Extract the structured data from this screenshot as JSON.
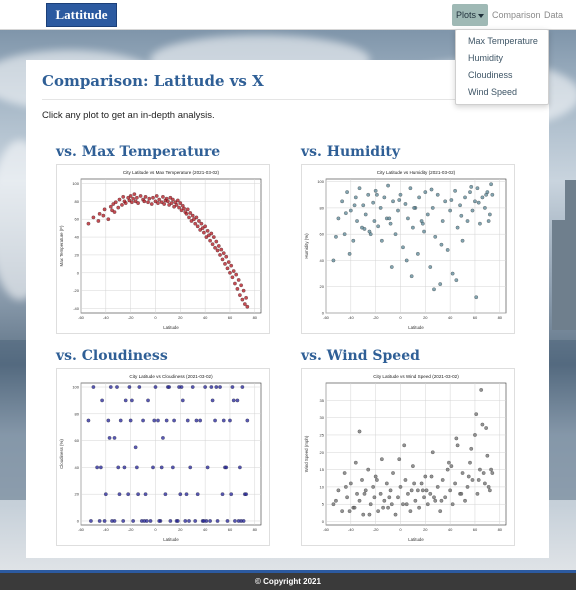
{
  "brand": "Lattitude",
  "nav": {
    "plots_label": "Plots",
    "comparison_label": "Comparison",
    "data_label": "Data",
    "dropdown": [
      "Max Temperature",
      "Humidity",
      "Cloudiness",
      "Wind Speed"
    ]
  },
  "page": {
    "title": "Comparison: Latitude vs X",
    "intro": "Click any plot to get an in-depth analysis."
  },
  "plots": {
    "temp": {
      "heading": "vs. Max Temperature",
      "title": "City Latitude vs Max Temperature (2021-03-02)",
      "xlabel": "Latitude",
      "ylabel": "Max Temperature (F)"
    },
    "humidity": {
      "heading": "vs. Humidity",
      "title": "City Latitude vs Humidity (2021-03-02)",
      "xlabel": "Latitude",
      "ylabel": "Humidity (%)"
    },
    "cloud": {
      "heading": "vs. Cloudiness",
      "title": "City Latitude vs Cloudiness (2021-03-02)",
      "xlabel": "Latitude",
      "ylabel": "Cloudiness (%)"
    },
    "wind": {
      "heading": "vs. Wind Speed",
      "title": "City Latitude vs Wind Speed (2021-03-02)",
      "xlabel": "Latitude",
      "ylabel": "Wind Speed (mph)"
    }
  },
  "chart_data": [
    {
      "type": "scatter",
      "title": "City Latitude vs Max Temperature (2021-03-02)",
      "xlabel": "Latitude",
      "ylabel": "Max Temperature (F)",
      "xlim": [
        -60,
        85
      ],
      "ylim": [
        -45,
        105
      ],
      "xticks": [
        -60,
        -40,
        -20,
        0,
        20,
        40,
        60,
        80
      ],
      "yticks": [
        -40,
        -20,
        0,
        20,
        40,
        60,
        80,
        100
      ],
      "color": "#b0121b",
      "grid": true,
      "x": [
        -54,
        -50,
        -46,
        -45,
        -42,
        -41,
        -38,
        -36,
        -35,
        -34,
        -33,
        -32,
        -30,
        -29,
        -27,
        -26,
        -25,
        -24,
        -22,
        -21,
        -20,
        -19,
        -18,
        -17,
        -16,
        -15,
        -14,
        -12,
        -10,
        -9,
        -8,
        -6,
        -5,
        -3,
        -2,
        0,
        1,
        2,
        3,
        5,
        6,
        7,
        8,
        9,
        10,
        11,
        12,
        13,
        14,
        15,
        16,
        17,
        18,
        19,
        20,
        21,
        22,
        23,
        24,
        25,
        26,
        27,
        28,
        29,
        30,
        31,
        32,
        33,
        34,
        35,
        36,
        37,
        38,
        39,
        40,
        41,
        42,
        43,
        44,
        45,
        46,
        47,
        48,
        49,
        50,
        51,
        52,
        53,
        54,
        55,
        56,
        57,
        58,
        59,
        60,
        61,
        62,
        63,
        64,
        65,
        66,
        67,
        68,
        69,
        70,
        71,
        72,
        73,
        74
      ],
      "y": [
        55,
        62,
        58,
        66,
        64,
        71,
        60,
        74,
        70,
        77,
        68,
        79,
        73,
        82,
        76,
        85,
        80,
        78,
        84,
        81,
        86,
        79,
        83,
        88,
        80,
        84,
        78,
        86,
        82,
        80,
        85,
        79,
        83,
        77,
        84,
        80,
        86,
        78,
        82,
        79,
        85,
        77,
        81,
        83,
        80,
        76,
        84,
        78,
        82,
        74,
        79,
        76,
        81,
        73,
        78,
        70,
        75,
        72,
        68,
        66,
        71,
        62,
        67,
        58,
        64,
        60,
        55,
        62,
        52,
        58,
        48,
        55,
        50,
        45,
        52,
        40,
        47,
        42,
        36,
        44,
        32,
        40,
        28,
        35,
        25,
        30,
        20,
        26,
        15,
        22,
        10,
        18,
        5,
        12,
        0,
        8,
        -5,
        2,
        -12,
        -2,
        -18,
        -8,
        -25,
        -14,
        -30,
        -20,
        -35,
        -28,
        -38
      ]
    },
    {
      "type": "scatter",
      "title": "City Latitude vs Humidity (2021-03-02)",
      "xlabel": "Latitude",
      "ylabel": "Humidity (%)",
      "xlim": [
        -60,
        85
      ],
      "ylim": [
        0,
        102
      ],
      "xticks": [
        -60,
        -40,
        -20,
        0,
        20,
        40,
        60,
        80
      ],
      "yticks": [
        0,
        20,
        40,
        60,
        80,
        100
      ],
      "color": "#5a8596",
      "grid": true,
      "x": [
        -54,
        -50,
        -47,
        -45,
        -43,
        -40,
        -38,
        -36,
        -35,
        -33,
        -31,
        -30,
        -28,
        -26,
        -24,
        -22,
        -21,
        -20,
        -18,
        -16,
        -15,
        -13,
        -11,
        -10,
        -8,
        -6,
        -4,
        -2,
        0,
        2,
        4,
        6,
        8,
        10,
        12,
        14,
        15,
        17,
        19,
        20,
        22,
        24,
        26,
        28,
        30,
        32,
        34,
        36,
        38,
        40,
        42,
        44,
        46,
        48,
        50,
        52,
        54,
        56,
        58,
        60,
        62,
        64,
        66,
        68,
        70,
        72,
        74,
        -52,
        -44,
        -37,
        -29,
        -19,
        -9,
        -1,
        5,
        11,
        18,
        25,
        33,
        41,
        49,
        57,
        63,
        69,
        73,
        -41,
        -25,
        -7,
        9,
        27,
        45,
        61,
        71
      ],
      "y": [
        40,
        72,
        85,
        60,
        92,
        78,
        55,
        88,
        70,
        95,
        65,
        82,
        75,
        90,
        60,
        84,
        70,
        93,
        66,
        80,
        55,
        88,
        72,
        97,
        68,
        85,
        60,
        78,
        90,
        50,
        83,
        72,
        95,
        65,
        80,
        45,
        88,
        70,
        62,
        92,
        75,
        35,
        80,
        58,
        90,
        22,
        70,
        85,
        48,
        78,
        30,
        93,
        65,
        82,
        55,
        88,
        70,
        92,
        78,
        85,
        95,
        68,
        88,
        80,
        92,
        75,
        90,
        58,
        76,
        82,
        64,
        90,
        72,
        86,
        40,
        80,
        68,
        94,
        52,
        86,
        74,
        96,
        84,
        90,
        98,
        45,
        62,
        35,
        28,
        18,
        25,
        12,
        70
      ]
    },
    {
      "type": "scatter",
      "title": "City Latitude vs Cloudiness (2021-03-02)",
      "xlabel": "Latitude",
      "ylabel": "Cloudiness (%)",
      "xlim": [
        -60,
        85
      ],
      "ylim": [
        -3,
        103
      ],
      "xticks": [
        -60,
        -40,
        -20,
        0,
        20,
        40,
        60,
        80
      ],
      "yticks": [
        0,
        20,
        40,
        60,
        80,
        100
      ],
      "color": "#22229a",
      "grid": true,
      "x": [
        -54,
        -50,
        -47,
        -45,
        -43,
        -40,
        -38,
        -36,
        -35,
        -33,
        -31,
        -30,
        -28,
        -26,
        -24,
        -22,
        -21,
        -20,
        -18,
        -16,
        -15,
        -13,
        -11,
        -10,
        -8,
        -6,
        -4,
        -2,
        0,
        2,
        4,
        6,
        8,
        10,
        12,
        14,
        15,
        17,
        19,
        20,
        22,
        24,
        26,
        28,
        30,
        32,
        34,
        36,
        38,
        40,
        42,
        44,
        46,
        48,
        50,
        52,
        54,
        56,
        58,
        60,
        62,
        64,
        66,
        68,
        70,
        72,
        74,
        -52,
        -44,
        -37,
        -29,
        -19,
        -9,
        -1,
        5,
        11,
        18,
        25,
        33,
        41,
        49,
        57,
        63,
        69,
        73,
        -41,
        -25,
        -7,
        9,
        27,
        45,
        61,
        71,
        -33,
        -14,
        3,
        21,
        39,
        55,
        67
      ],
      "y": [
        75,
        100,
        40,
        0,
        90,
        20,
        75,
        100,
        0,
        62,
        100,
        40,
        75,
        0,
        90,
        20,
        100,
        75,
        0,
        55,
        40,
        100,
        0,
        75,
        20,
        90,
        0,
        40,
        100,
        75,
        0,
        62,
        20,
        100,
        0,
        40,
        75,
        0,
        100,
        20,
        90,
        0,
        75,
        40,
        100,
        0,
        20,
        75,
        0,
        100,
        40,
        0,
        90,
        75,
        0,
        100,
        20,
        40,
        0,
        75,
        100,
        0,
        90,
        40,
        100,
        20,
        75,
        0,
        40,
        62,
        20,
        90,
        0,
        75,
        40,
        100,
        0,
        20,
        75,
        0,
        100,
        40,
        90,
        0,
        20,
        0,
        40,
        0,
        75,
        0,
        100,
        20,
        0,
        0,
        20,
        0,
        100,
        0,
        75,
        0
      ]
    },
    {
      "type": "scatter",
      "title": "City Latitude vs Wind Speed (2021-03-02)",
      "xlabel": "Latitude",
      "ylabel": "Wind Speed (mph)",
      "xlim": [
        -60,
        85
      ],
      "ylim": [
        -1,
        40
      ],
      "xticks": [
        -60,
        -40,
        -20,
        0,
        20,
        40,
        60,
        80
      ],
      "yticks": [
        0,
        5,
        10,
        15,
        20,
        25,
        30,
        35
      ],
      "color": "#6e6e6e",
      "grid": true,
      "x": [
        -54,
        -50,
        -47,
        -45,
        -43,
        -40,
        -38,
        -36,
        -35,
        -33,
        -31,
        -30,
        -28,
        -26,
        -24,
        -22,
        -21,
        -20,
        -18,
        -16,
        -15,
        -13,
        -11,
        -10,
        -8,
        -6,
        -4,
        -2,
        0,
        2,
        4,
        6,
        8,
        10,
        12,
        14,
        15,
        17,
        19,
        20,
        22,
        24,
        26,
        28,
        30,
        32,
        34,
        36,
        38,
        40,
        42,
        44,
        46,
        48,
        50,
        52,
        54,
        56,
        58,
        60,
        62,
        64,
        66,
        68,
        70,
        72,
        74,
        -52,
        -44,
        -37,
        -29,
        -19,
        -9,
        -1,
        5,
        11,
        18,
        25,
        33,
        41,
        49,
        57,
        63,
        69,
        73,
        -41,
        -25,
        -7,
        9,
        27,
        45,
        61,
        71,
        -33,
        -14,
        3,
        21,
        39,
        55,
        65,
        67
      ],
      "y": [
        5,
        9,
        3,
        14,
        7,
        11,
        4,
        17,
        8,
        6,
        12,
        2,
        9,
        15,
        5,
        10,
        7,
        13,
        3,
        8,
        18,
        6,
        11,
        4,
        9,
        14,
        2,
        7,
        10,
        5,
        12,
        8,
        3,
        16,
        6,
        9,
        4,
        11,
        7,
        13,
        5,
        8,
        20,
        6,
        10,
        3,
        12,
        7,
        15,
        9,
        5,
        11,
        22,
        8,
        14,
        6,
        10,
        17,
        12,
        25,
        8,
        15,
        28,
        11,
        19,
        9,
        14,
        6,
        10,
        4,
        8,
        12,
        7,
        18,
        5,
        11,
        9,
        13,
        6,
        16,
        8,
        21,
        12,
        27,
        15,
        3,
        2,
        5,
        9,
        7,
        24,
        31,
        10,
        26,
        4,
        22,
        9,
        17,
        13,
        38,
        14
      ]
    }
  ]
}
